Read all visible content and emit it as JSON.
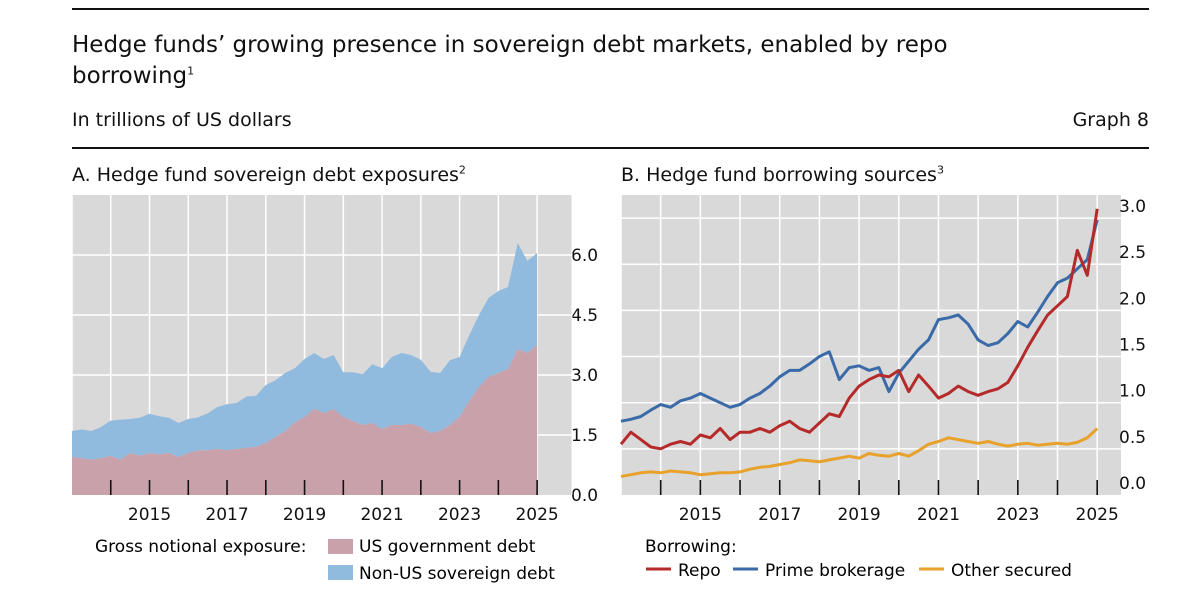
{
  "title": "Hedge funds’ growing presence in sovereign debt markets, enabled by repo borrowing",
  "title_footnote": "1",
  "subtitle": "In trillions of US dollars",
  "graph_label": "Graph 8",
  "colors": {
    "us_gov": "#c8a1ab",
    "non_us": "#91badf",
    "repo": "#b52a2a",
    "prime": "#3a6aa8",
    "other": "#e8a22b",
    "plot_bg": "#d9d9d9",
    "grid": "#ffffff"
  },
  "legend_a": {
    "heading": "Gross notional exposure:",
    "items": [
      "US government debt",
      "Non-US sovereign debt"
    ]
  },
  "legend_b": {
    "heading": "Borrowing:",
    "items": [
      "Repo",
      "Prime brokerage",
      "Other secured"
    ]
  },
  "chart_data": [
    {
      "id": "A",
      "type": "area",
      "stacked": true,
      "title": "A. Hedge fund sovereign debt exposures",
      "title_footnote": "2",
      "xlim": [
        2013.0,
        2025.9
      ],
      "ylim": [
        0,
        7.5
      ],
      "x_ticks": [
        2015,
        2017,
        2019,
        2021,
        2023,
        2025
      ],
      "y_ticks": [
        0.0,
        1.5,
        3.0,
        4.5,
        6.0
      ],
      "y_tick_labels": [
        "0.0",
        "1.5",
        "3.0",
        "4.5",
        "6.0"
      ],
      "x": [
        2013.0,
        2013.25,
        2013.5,
        2013.75,
        2014.0,
        2014.25,
        2014.5,
        2014.75,
        2015.0,
        2015.25,
        2015.5,
        2015.75,
        2016.0,
        2016.25,
        2016.5,
        2016.75,
        2017.0,
        2017.25,
        2017.5,
        2017.75,
        2018.0,
        2018.25,
        2018.5,
        2018.75,
        2019.0,
        2019.25,
        2019.5,
        2019.75,
        2020.0,
        2020.25,
        2020.5,
        2020.75,
        2021.0,
        2021.25,
        2021.5,
        2021.75,
        2022.0,
        2022.25,
        2022.5,
        2022.75,
        2023.0,
        2023.25,
        2023.5,
        2023.75,
        2024.0,
        2024.25,
        2024.5,
        2024.75,
        2025.0
      ],
      "series": [
        {
          "name": "US government debt",
          "values": [
            0.95,
            0.92,
            0.88,
            0.92,
            0.98,
            0.88,
            1.05,
            0.98,
            1.05,
            1.02,
            1.05,
            0.95,
            1.05,
            1.12,
            1.12,
            1.15,
            1.12,
            1.15,
            1.18,
            1.2,
            1.3,
            1.45,
            1.6,
            1.82,
            1.95,
            2.15,
            2.05,
            2.15,
            1.95,
            1.85,
            1.75,
            1.8,
            1.65,
            1.75,
            1.75,
            1.78,
            1.7,
            1.55,
            1.6,
            1.75,
            1.95,
            2.35,
            2.7,
            2.95,
            3.05,
            3.15,
            3.65,
            3.55,
            3.75
          ]
        },
        {
          "name": "Non-US sovereign debt",
          "values": [
            0.65,
            0.72,
            0.72,
            0.78,
            0.88,
            1.0,
            0.85,
            0.95,
            0.98,
            0.95,
            0.88,
            0.85,
            0.85,
            0.82,
            0.92,
            1.05,
            1.15,
            1.15,
            1.28,
            1.28,
            1.45,
            1.42,
            1.45,
            1.35,
            1.45,
            1.4,
            1.35,
            1.35,
            1.12,
            1.22,
            1.27,
            1.47,
            1.52,
            1.7,
            1.8,
            1.72,
            1.68,
            1.53,
            1.45,
            1.62,
            1.5,
            1.65,
            1.8,
            1.98,
            2.05,
            2.05,
            2.65,
            2.3,
            2.3
          ]
        }
      ]
    },
    {
      "id": "B",
      "type": "line",
      "title": "B. Hedge fund borrowing sources",
      "title_footnote": "3",
      "xlim": [
        2013.0,
        2025.6
      ],
      "ylim": [
        0,
        3.25
      ],
      "x_ticks": [
        2015,
        2017,
        2019,
        2021,
        2023,
        2025
      ],
      "y_ticks": [
        0.0,
        0.5,
        1.0,
        1.5,
        2.0,
        2.5,
        3.0
      ],
      "y_tick_labels": [
        "0.0",
        "0.5",
        "1.0",
        "1.5",
        "2.0",
        "2.5",
        "3.0"
      ],
      "series": [
        {
          "name": "Repo",
          "x": [
            2013.0,
            2013.25,
            2013.5,
            2013.75,
            2014.0,
            2014.25,
            2014.5,
            2014.75,
            2015.0,
            2015.25,
            2015.5,
            2015.75,
            2016.0,
            2016.25,
            2016.5,
            2016.75,
            2017.0,
            2017.25,
            2017.5,
            2017.75,
            2018.0,
            2018.25,
            2018.5,
            2018.75,
            2019.0,
            2019.25,
            2019.5,
            2019.75,
            2020.0,
            2020.25,
            2020.5,
            2020.75,
            2021.0,
            2021.25,
            2021.5,
            2021.75,
            2022.0,
            2022.25,
            2022.5,
            2022.75,
            2023.0,
            2023.25,
            2023.5,
            2023.75,
            2024.0,
            2024.25,
            2024.5,
            2024.75,
            2025.0
          ],
          "values": [
            0.55,
            0.68,
            0.6,
            0.52,
            0.5,
            0.55,
            0.58,
            0.55,
            0.65,
            0.62,
            0.72,
            0.6,
            0.68,
            0.68,
            0.72,
            0.68,
            0.75,
            0.8,
            0.72,
            0.68,
            0.78,
            0.88,
            0.85,
            1.05,
            1.18,
            1.25,
            1.3,
            1.28,
            1.35,
            1.12,
            1.3,
            1.18,
            1.05,
            1.1,
            1.18,
            1.12,
            1.08,
            1.12,
            1.15,
            1.22,
            1.4,
            1.6,
            1.78,
            1.95,
            2.05,
            2.15,
            2.65,
            2.38,
            3.1
          ]
        },
        {
          "name": "Prime brokerage",
          "x": [
            2013.0,
            2013.25,
            2013.5,
            2013.75,
            2014.0,
            2014.25,
            2014.5,
            2014.75,
            2015.0,
            2015.25,
            2015.5,
            2015.75,
            2016.0,
            2016.25,
            2016.5,
            2016.75,
            2017.0,
            2017.25,
            2017.5,
            2017.75,
            2018.0,
            2018.25,
            2018.5,
            2018.75,
            2019.0,
            2019.25,
            2019.5,
            2019.75,
            2020.0,
            2020.25,
            2020.5,
            2020.75,
            2021.0,
            2021.25,
            2021.5,
            2021.75,
            2022.0,
            2022.25,
            2022.5,
            2022.75,
            2023.0,
            2023.25,
            2023.5,
            2023.75,
            2024.0,
            2024.25,
            2024.5,
            2024.75,
            2025.0
          ],
          "values": [
            0.8,
            0.82,
            0.85,
            0.92,
            0.98,
            0.95,
            1.02,
            1.05,
            1.1,
            1.05,
            1.0,
            0.95,
            0.98,
            1.05,
            1.1,
            1.18,
            1.28,
            1.35,
            1.35,
            1.42,
            1.5,
            1.55,
            1.25,
            1.38,
            1.4,
            1.35,
            1.38,
            1.12,
            1.32,
            1.45,
            1.58,
            1.68,
            1.9,
            1.92,
            1.95,
            1.85,
            1.68,
            1.62,
            1.65,
            1.75,
            1.88,
            1.82,
            1.98,
            2.15,
            2.3,
            2.35,
            2.45,
            2.55,
            2.98
          ]
        },
        {
          "name": "Other secured",
          "x": [
            2013.0,
            2013.25,
            2013.5,
            2013.75,
            2014.0,
            2014.25,
            2014.5,
            2014.75,
            2015.0,
            2015.25,
            2015.5,
            2015.75,
            2016.0,
            2016.25,
            2016.5,
            2016.75,
            2017.0,
            2017.25,
            2017.5,
            2017.75,
            2018.0,
            2018.25,
            2018.5,
            2018.75,
            2019.0,
            2019.25,
            2019.5,
            2019.75,
            2020.0,
            2020.25,
            2020.5,
            2020.75,
            2021.0,
            2021.25,
            2021.5,
            2021.75,
            2022.0,
            2022.25,
            2022.5,
            2022.75,
            2023.0,
            2023.25,
            2023.5,
            2023.75,
            2024.0,
            2024.25,
            2024.5,
            2024.75,
            2025.0
          ],
          "values": [
            0.2,
            0.22,
            0.24,
            0.25,
            0.24,
            0.26,
            0.25,
            0.24,
            0.22,
            0.23,
            0.24,
            0.24,
            0.25,
            0.28,
            0.3,
            0.31,
            0.33,
            0.35,
            0.38,
            0.37,
            0.36,
            0.38,
            0.4,
            0.42,
            0.4,
            0.45,
            0.43,
            0.42,
            0.45,
            0.42,
            0.48,
            0.55,
            0.58,
            0.62,
            0.6,
            0.58,
            0.56,
            0.58,
            0.55,
            0.53,
            0.55,
            0.56,
            0.54,
            0.55,
            0.56,
            0.55,
            0.57,
            0.62,
            0.72
          ]
        }
      ]
    }
  ]
}
